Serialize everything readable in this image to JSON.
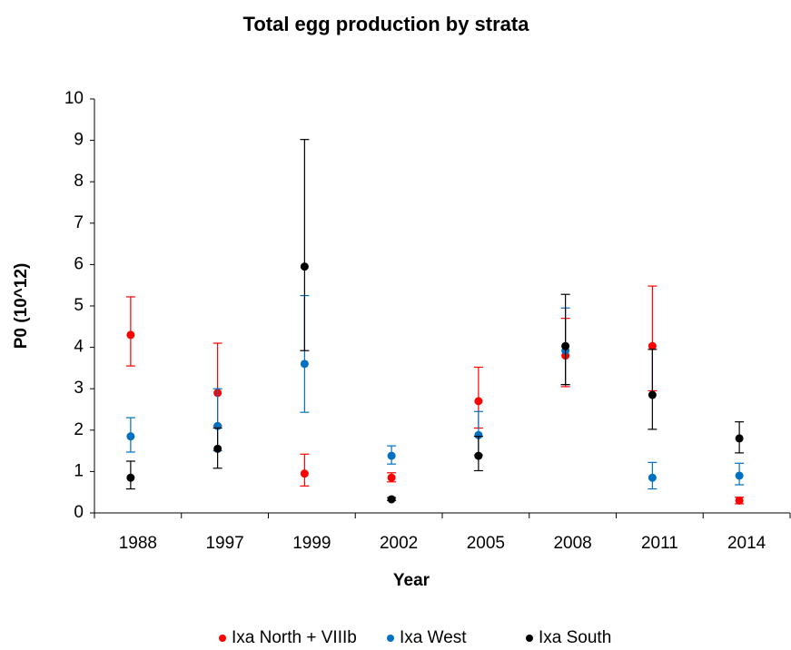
{
  "chart_data": {
    "type": "errorbar_scatter",
    "title": "Total egg production by strata",
    "x_label": "Year",
    "y_label": "P0 (10^12)",
    "categories": [
      "1988",
      "1997",
      "1999",
      "2002",
      "2005",
      "2008",
      "2011",
      "2014"
    ],
    "ylim": [
      0,
      10
    ],
    "yticks": [
      0,
      1,
      2,
      3,
      4,
      5,
      6,
      7,
      8,
      9,
      10
    ],
    "grid": false,
    "legend": "bottom",
    "series": [
      {
        "name": "Ixa North + VIIIb",
        "color": "#ff0000",
        "values": [
          4.3,
          2.9,
          0.95,
          0.85,
          2.7,
          3.8,
          4.03,
          0.3
        ],
        "lower": [
          3.55,
          2.1,
          0.65,
          0.75,
          2.05,
          3.05,
          2.95,
          0.22
        ],
        "upper": [
          5.22,
          4.1,
          1.42,
          0.97,
          3.52,
          4.7,
          5.48,
          0.38
        ]
      },
      {
        "name": "Ixa West",
        "color": "#0070c0",
        "values": [
          1.85,
          2.1,
          3.6,
          1.38,
          1.88,
          3.92,
          0.85,
          0.9
        ],
        "lower": [
          1.47,
          1.5,
          2.43,
          1.18,
          1.4,
          3.1,
          0.58,
          0.68
        ],
        "upper": [
          2.3,
          3.0,
          5.25,
          1.62,
          2.45,
          4.95,
          1.22,
          1.2
        ]
      },
      {
        "name": "Ixa South",
        "color": "#000000",
        "values": [
          0.85,
          1.55,
          5.95,
          0.33,
          1.38,
          4.03,
          2.85,
          1.8
        ],
        "lower": [
          0.58,
          1.08,
          3.92,
          0.3,
          1.02,
          3.1,
          2.02,
          1.45
        ],
        "upper": [
          1.25,
          2.05,
          9.02,
          0.37,
          1.85,
          5.28,
          3.95,
          2.2
        ]
      }
    ]
  }
}
